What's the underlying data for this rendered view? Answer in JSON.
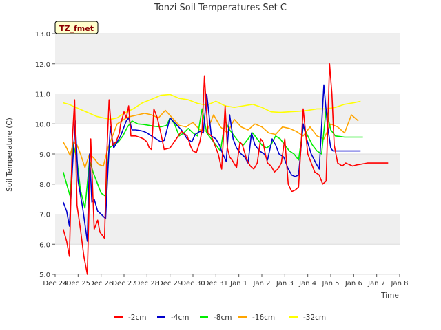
{
  "chart_data": {
    "type": "line",
    "title": "Tonzi Soil Temperatures Set C",
    "xlabel": "Time",
    "ylabel": "Soil Temperature (C)",
    "annotation": "TZ_fmet",
    "xlim": [
      0,
      15
    ],
    "ylim": [
      5.0,
      13.0
    ],
    "x_ticks": [
      0,
      1,
      2,
      3,
      4,
      5,
      6,
      7,
      8,
      9,
      10,
      11,
      12,
      13,
      14,
      15
    ],
    "x_tick_labels": [
      "Dec 24",
      "Dec 25",
      "Dec 26",
      "Dec 27",
      "Dec 28",
      "Dec 29",
      "Dec 30",
      "Dec 31",
      "Jan 1",
      "Jan 2",
      "Jan 3",
      "Jan 4",
      "Jan 5",
      "Jan 6",
      "Jan 7",
      "Jan 8"
    ],
    "y_ticks": [
      5.0,
      6.0,
      7.0,
      8.0,
      9.0,
      10.0,
      11.0,
      12.0,
      13.0
    ],
    "y_tick_labels": [
      "5.0",
      "6.0",
      "7.0",
      "8.0",
      "9.0",
      "10.0",
      "11.0",
      "12.0",
      "13.0"
    ],
    "series": [
      {
        "name": "-2cm",
        "color": "#ff0000",
        "x": [
          0.35,
          0.5,
          0.62,
          0.75,
          0.85,
          0.95,
          1.1,
          1.25,
          1.4,
          1.55,
          1.7,
          1.85,
          1.95,
          2.05,
          2.15,
          2.25,
          2.35,
          2.5,
          2.65,
          2.8,
          2.85,
          3.0,
          3.1,
          3.2,
          3.3,
          3.5,
          3.7,
          3.85,
          4.0,
          4.1,
          4.2,
          4.3,
          4.45,
          4.6,
          4.75,
          5.0,
          5.5,
          5.75,
          5.9,
          6.0,
          6.15,
          6.3,
          6.4,
          6.5,
          6.65,
          6.8,
          6.95,
          7.1,
          7.25,
          7.4,
          7.5,
          7.6,
          7.7,
          7.9,
          8.05,
          8.15,
          8.25,
          8.35,
          8.5,
          8.65,
          8.8,
          8.95,
          9.05,
          9.15,
          9.25,
          9.4,
          9.55,
          9.7,
          9.85,
          10.0,
          10.15,
          10.3,
          10.45,
          10.6,
          10.8,
          11.0,
          11.15,
          11.3,
          11.5,
          11.65,
          11.8,
          11.95,
          12.05,
          12.15,
          12.3,
          12.5,
          12.65,
          12.8,
          12.95,
          13.05,
          13.15,
          13.3,
          13.45,
          13.6,
          13.75,
          13.9,
          14.0,
          14.12,
          14.25,
          14.4,
          14.5
        ],
        "y": [
          6.5,
          6.1,
          5.6,
          9.5,
          10.8,
          7.3,
          6.5,
          5.6,
          5.0,
          9.5,
          6.5,
          6.8,
          6.4,
          6.3,
          6.2,
          9.0,
          10.8,
          9.3,
          9.4,
          9.7,
          10.0,
          10.4,
          10.2,
          10.6,
          9.6,
          9.6,
          9.55,
          9.5,
          9.4,
          9.2,
          9.15,
          10.5,
          10.2,
          9.7,
          9.15,
          9.2,
          9.75,
          9.6,
          9.25,
          9.1,
          9.05,
          9.4,
          9.8,
          11.6,
          9.7,
          9.6,
          9.3,
          9.0,
          8.5,
          10.6,
          9.2,
          8.9,
          8.8,
          8.55,
          9.4,
          9.3,
          9.05,
          8.8,
          8.6,
          8.5,
          8.7,
          9.5,
          9.4,
          9.0,
          8.7,
          8.6,
          8.4,
          8.5,
          8.7,
          9.5,
          8.0,
          7.75,
          7.8,
          7.9,
          10.5,
          9.0,
          8.7,
          8.4,
          8.3,
          8.0,
          8.1,
          12.0,
          11.0,
          9.3,
          8.7,
          8.6,
          8.7,
          8.65,
          8.6,
          8.62,
          8.64,
          8.66,
          8.68,
          8.7,
          8.7,
          8.7,
          8.7,
          8.7,
          8.7,
          8.7,
          8.7
        ]
      },
      {
        "name": "-4cm",
        "color": "#0000cc",
        "x": [
          0.35,
          0.5,
          0.62,
          0.75,
          0.88,
          1.0,
          1.2,
          1.4,
          1.5,
          1.6,
          1.7,
          1.85,
          2.0,
          2.2,
          2.3,
          2.4,
          2.55,
          2.7,
          2.85,
          3.0,
          3.1,
          3.2,
          3.35,
          3.5,
          3.7,
          3.85,
          4.0,
          4.2,
          4.4,
          4.6,
          4.75,
          5.0,
          5.5,
          5.75,
          5.95,
          6.1,
          6.3,
          6.45,
          6.6,
          6.8,
          7.0,
          7.15,
          7.3,
          7.45,
          7.6,
          7.75,
          7.9,
          8.1,
          8.25,
          8.4,
          8.55,
          8.7,
          8.9,
          9.1,
          9.25,
          9.45,
          9.6,
          9.75,
          9.95,
          10.15,
          10.3,
          10.45,
          10.6,
          10.8,
          10.95,
          11.15,
          11.35,
          11.5,
          11.7,
          11.85,
          12.0,
          12.1,
          12.2,
          12.35,
          12.5,
          12.65,
          12.8,
          12.95,
          13.1,
          13.3
        ],
        "y": [
          7.4,
          7.1,
          6.6,
          8.5,
          10.1,
          8.1,
          7.2,
          6.1,
          9.0,
          7.4,
          7.5,
          7.1,
          7.0,
          6.85,
          8.5,
          9.9,
          9.2,
          9.4,
          9.6,
          9.9,
          10.1,
          10.2,
          9.8,
          9.8,
          9.78,
          9.75,
          9.7,
          9.6,
          9.5,
          9.4,
          9.45,
          10.2,
          9.8,
          9.5,
          9.4,
          9.65,
          9.75,
          9.7,
          11.0,
          9.6,
          9.5,
          9.3,
          9.0,
          8.75,
          10.3,
          9.5,
          9.2,
          9.0,
          8.9,
          8.7,
          9.7,
          9.3,
          9.1,
          9.0,
          8.8,
          9.5,
          9.3,
          9.0,
          8.9,
          8.5,
          8.3,
          8.25,
          8.3,
          10.0,
          9.5,
          9.0,
          8.7,
          8.5,
          11.3,
          10.0,
          9.2,
          9.1,
          9.1,
          9.1,
          9.1,
          9.1,
          9.1,
          9.1,
          9.1,
          9.1
        ]
      },
      {
        "name": "-8cm",
        "color": "#00ee00",
        "x": [
          0.35,
          0.5,
          0.65,
          0.8,
          0.95,
          1.1,
          1.3,
          1.5,
          1.65,
          1.85,
          2.0,
          2.2,
          2.35,
          2.55,
          2.75,
          2.95,
          3.15,
          3.35,
          3.6,
          3.85,
          4.1,
          4.35,
          4.6,
          4.85,
          5.0,
          5.2,
          5.4,
          5.6,
          5.8,
          6.0,
          6.2,
          6.4,
          6.6,
          6.8,
          7.0,
          7.2,
          7.4,
          7.6,
          7.8,
          8.0,
          8.2,
          8.4,
          8.6,
          8.8,
          9.0,
          9.2,
          9.4,
          9.6,
          9.8,
          10.0,
          10.2,
          10.4,
          10.6,
          10.8,
          11.0,
          11.2,
          11.4,
          11.6,
          11.8,
          12.0,
          12.2,
          12.4,
          12.6,
          12.8,
          13.0,
          13.2,
          13.4
        ],
        "y": [
          8.4,
          8.0,
          7.6,
          9.3,
          8.8,
          7.8,
          7.2,
          8.8,
          8.4,
          8.0,
          7.7,
          7.6,
          9.2,
          9.3,
          9.4,
          9.6,
          9.9,
          10.1,
          10.0,
          9.98,
          9.95,
          9.92,
          9.9,
          9.95,
          10.2,
          10.0,
          9.6,
          9.7,
          9.85,
          9.7,
          9.6,
          10.5,
          9.7,
          9.5,
          9.3,
          9.1,
          10.1,
          9.8,
          9.6,
          9.4,
          9.3,
          9.5,
          9.7,
          9.5,
          9.3,
          9.2,
          9.3,
          9.6,
          9.5,
          9.3,
          9.1,
          9.0,
          8.8,
          9.9,
          9.6,
          9.3,
          9.1,
          9.0,
          10.5,
          9.8,
          9.6,
          9.58,
          9.56,
          9.56,
          9.56,
          9.56,
          9.56
        ]
      },
      {
        "name": "-16cm",
        "color": "#ffa500",
        "x": [
          0.35,
          0.5,
          0.65,
          0.8,
          0.95,
          1.1,
          1.3,
          1.5,
          1.7,
          1.9,
          2.1,
          2.3,
          2.5,
          2.7,
          2.9,
          3.1,
          3.3,
          3.6,
          3.9,
          4.2,
          4.5,
          4.8,
          5.1,
          5.4,
          5.7,
          6.0,
          6.3,
          6.6,
          6.9,
          7.2,
          7.5,
          7.8,
          8.1,
          8.4,
          8.7,
          9.0,
          9.3,
          9.6,
          9.9,
          10.2,
          10.5,
          10.8,
          11.1,
          11.4,
          11.7,
          12.0,
          12.3,
          12.6,
          12.9,
          13.2
        ],
        "y": [
          9.4,
          9.2,
          8.95,
          9.4,
          9.3,
          9.0,
          8.55,
          9.0,
          8.85,
          8.65,
          8.6,
          9.2,
          9.6,
          10.0,
          10.1,
          10.2,
          10.25,
          10.3,
          10.35,
          10.3,
          10.2,
          10.45,
          10.2,
          9.95,
          9.9,
          10.05,
          9.8,
          9.75,
          10.3,
          9.9,
          9.7,
          10.15,
          9.9,
          9.8,
          10.0,
          9.9,
          9.7,
          9.65,
          9.9,
          9.85,
          9.75,
          9.6,
          9.9,
          9.6,
          9.5,
          10.0,
          9.9,
          9.7,
          10.3,
          10.1
        ]
      },
      {
        "name": "-32cm",
        "color": "#ffff00",
        "x": [
          0.35,
          0.6,
          0.9,
          1.2,
          1.5,
          1.8,
          2.1,
          2.4,
          2.7,
          3.0,
          3.4,
          3.8,
          4.2,
          4.6,
          5.0,
          5.4,
          5.8,
          6.2,
          6.6,
          7.0,
          7.4,
          7.8,
          8.2,
          8.6,
          9.0,
          9.4,
          9.8,
          10.2,
          10.6,
          11.0,
          11.4,
          11.8,
          12.2,
          12.6,
          13.0,
          13.3
        ],
        "y": [
          10.7,
          10.65,
          10.55,
          10.45,
          10.35,
          10.25,
          10.2,
          10.15,
          10.2,
          10.35,
          10.5,
          10.7,
          10.82,
          10.95,
          10.98,
          10.85,
          10.8,
          10.68,
          10.62,
          10.75,
          10.6,
          10.55,
          10.6,
          10.65,
          10.55,
          10.4,
          10.38,
          10.4,
          10.42,
          10.45,
          10.5,
          10.5,
          10.55,
          10.65,
          10.7,
          10.75
        ]
      }
    ]
  }
}
